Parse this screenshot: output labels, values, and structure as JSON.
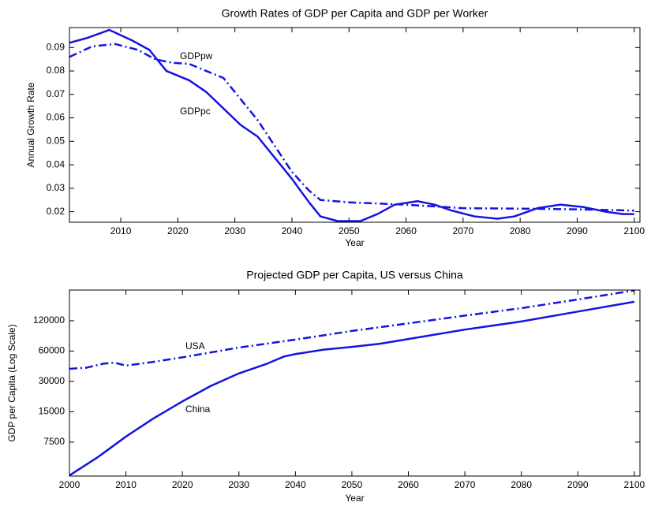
{
  "chart_data": [
    {
      "type": "line",
      "title": "Growth Rates of GDP per Capita and GDP per Worker",
      "xlabel": "Year",
      "ylabel": "Annual Growth Rate",
      "yscale": "linear",
      "xlim": [
        2001,
        2101
      ],
      "ylim": [
        0.0155,
        0.0985
      ],
      "xticks": [
        2010,
        2020,
        2030,
        2040,
        2050,
        2060,
        2070,
        2080,
        2090,
        2100
      ],
      "yticks": [
        0.02,
        0.03,
        0.04,
        0.05,
        0.06,
        0.07,
        0.08,
        0.09
      ],
      "series": [
        {
          "name": "GDPpc",
          "color": "#1414e0",
          "dash": "solid",
          "x": [
            2001,
            2004,
            2008,
            2012,
            2015,
            2018,
            2022,
            2025,
            2028,
            2031,
            2034,
            2037,
            2040,
            2043,
            2045,
            2048,
            2052,
            2055,
            2058,
            2062,
            2065,
            2068,
            2072,
            2076,
            2079,
            2083,
            2087,
            2091,
            2095,
            2098,
            2100
          ],
          "values": [
            0.092,
            0.094,
            0.0975,
            0.093,
            0.089,
            0.08,
            0.076,
            0.071,
            0.064,
            0.057,
            0.052,
            0.043,
            0.034,
            0.024,
            0.018,
            0.016,
            0.016,
            0.019,
            0.023,
            0.0245,
            0.023,
            0.0205,
            0.018,
            0.017,
            0.018,
            0.0215,
            0.023,
            0.022,
            0.02,
            0.019,
            0.019
          ]
        },
        {
          "name": "GDPpw",
          "color": "#1414e0",
          "dash": "dashdot",
          "x": [
            2001,
            2005,
            2009,
            2013,
            2016,
            2019,
            2022,
            2025,
            2028,
            2031,
            2034,
            2037,
            2040,
            2043,
            2045,
            2050,
            2055,
            2060,
            2070,
            2080,
            2090,
            2100
          ],
          "values": [
            0.086,
            0.0905,
            0.0915,
            0.089,
            0.085,
            0.0835,
            0.083,
            0.08,
            0.077,
            0.068,
            0.059,
            0.048,
            0.037,
            0.029,
            0.025,
            0.024,
            0.0235,
            0.023,
            0.0215,
            0.0213,
            0.021,
            0.0205
          ]
        }
      ]
    },
    {
      "type": "line",
      "title": "Projected GDP per Capita, US versus China",
      "xlabel": "Year",
      "ylabel": "GDP per Capita (Log Scale)",
      "yscale": "log",
      "xlim": [
        2000,
        2101
      ],
      "ylim": [
        3450,
        242000
      ],
      "xticks": [
        2000,
        2010,
        2020,
        2030,
        2040,
        2050,
        2060,
        2070,
        2080,
        2090,
        2100
      ],
      "yticks": [
        7500,
        15000,
        30000,
        60000,
        120000
      ],
      "series": [
        {
          "name": "USA",
          "color": "#1414e0",
          "dash": "dashdot",
          "x": [
            2000,
            2003,
            2006,
            2008,
            2010,
            2015,
            2020,
            2030,
            2040,
            2050,
            2060,
            2070,
            2080,
            2090,
            2100
          ],
          "values": [
            40000,
            41000,
            45000,
            46000,
            43000,
            47000,
            52000,
            65000,
            78000,
            95000,
            113000,
            135000,
            160000,
            195000,
            240000
          ]
        },
        {
          "name": "China",
          "color": "#1414e0",
          "dash": "solid",
          "x": [
            2000,
            2005,
            2010,
            2015,
            2020,
            2025,
            2030,
            2035,
            2038,
            2040,
            2045,
            2050,
            2055,
            2060,
            2070,
            2080,
            2090,
            2100
          ],
          "values": [
            3500,
            5300,
            8500,
            13000,
            19000,
            27000,
            36000,
            45000,
            53000,
            56000,
            62000,
            66000,
            71000,
            79000,
            98000,
            118000,
            148000,
            185000
          ]
        }
      ]
    }
  ]
}
